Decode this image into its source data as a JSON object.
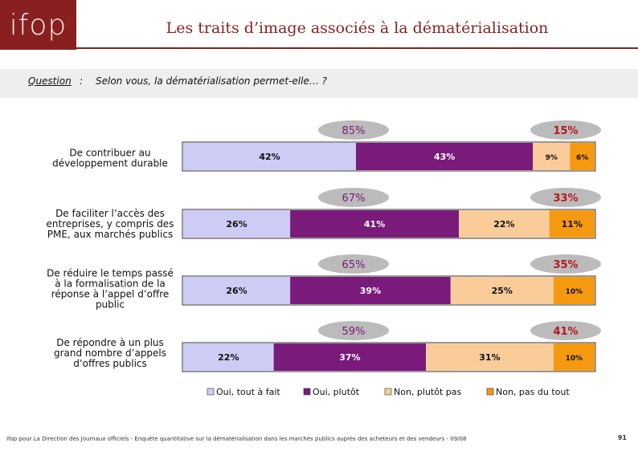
{
  "header": {
    "logo_text": "ifop",
    "title": "Les traits d’image associés à la dématérialisation"
  },
  "question": {
    "label": "Question",
    "colon": ":",
    "text": "Selon vous, la dématérialisation permet-elle… ?"
  },
  "colors": {
    "brand": "#8a1f1f",
    "oui_tout_a_fait": "#ccccf5",
    "oui_plutot": "#7a1a7a",
    "non_plutot_pas": "#f9cc9a",
    "non_pas_du_tout": "#f59a10",
    "bubble": "#bbbbbb"
  },
  "chart_data": {
    "type": "bar",
    "orientation": "horizontal",
    "stacked": true,
    "categories": [
      [
        "De contribuer au",
        "développement durable"
      ],
      [
        "De faciliter l’accès des",
        "entreprises, y compris des",
        "PME, aux marchés publics"
      ],
      [
        "De réduire le temps passé",
        "à la formalisation de la",
        "réponse à l’appel d’offre",
        "public"
      ],
      [
        "De répondre à un plus",
        "grand nombre d’appels",
        "d’offres publics"
      ]
    ],
    "series": [
      {
        "name": "Oui, tout à fait",
        "values": [
          42,
          26,
          26,
          22
        ]
      },
      {
        "name": "Oui, plutôt",
        "values": [
          43,
          41,
          39,
          37
        ]
      },
      {
        "name": "Non, plutôt pas",
        "values": [
          9,
          22,
          25,
          31
        ]
      },
      {
        "name": "Non, pas du tout",
        "values": [
          6,
          11,
          10,
          10
        ]
      }
    ],
    "totals_oui": [
      "85%",
      "67%",
      "65%",
      "59%"
    ],
    "totals_non": [
      "15%",
      "33%",
      "35%",
      "41%"
    ],
    "legend_position": "bottom",
    "grid": false
  },
  "footer": {
    "source": "Ifop pour La Direction des Journaux officiels - Enquête quantitative sur la dématérialisation dans les marchés publics auprès des acheteurs et des vendeurs - 09/08",
    "page": "91"
  }
}
